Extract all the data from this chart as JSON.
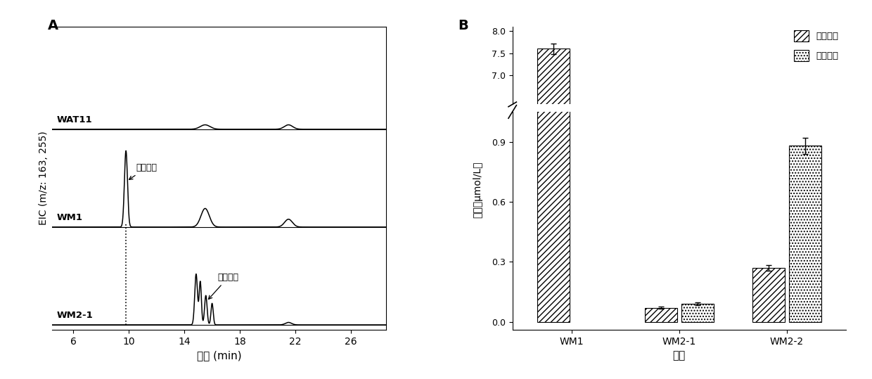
{
  "panel_A_label": "A",
  "panel_B_label": "B",
  "chromatogram": {
    "xlabel": "时间 (min)",
    "ylabel": "EIC (m/z: 163, 255)",
    "xmin": 4.5,
    "xmax": 28.5,
    "xticks": [
      6,
      10,
      14,
      18,
      22,
      26
    ],
    "trace_offsets": [
      2.0,
      1.0,
      0.0
    ],
    "trace_names": [
      "WAT11",
      "WM1",
      "WM2-1"
    ],
    "dotted_x": 9.8,
    "label_coumaric": "对香豆酸",
    "label_isoliquiritigenin": "异甘草素"
  },
  "bar_chart": {
    "groups": [
      "WM1",
      "WM2-1",
      "WM2-2"
    ],
    "series": [
      {
        "name": "对香豆酸",
        "values": [
          7.6,
          0.07,
          0.27
        ],
        "errors": [
          0.12,
          0.005,
          0.015
        ],
        "hatch": "////",
        "color": "white",
        "edgecolor": "black"
      },
      {
        "name": "异甘草素",
        "values": [
          0.0,
          0.09,
          0.88
        ],
        "errors": [
          0.0,
          0.006,
          0.04
        ],
        "hatch": "....",
        "color": "white",
        "edgecolor": "black"
      }
    ],
    "ylabel": "产量（μmol/L）",
    "xlabel": "菌株",
    "bar_width": 0.3,
    "yticks_upper": [
      7.0,
      7.5,
      8.0
    ],
    "yticks_lower": [
      0.0,
      0.3,
      0.6,
      0.9
    ],
    "display_upper_min": 6.35,
    "display_upper_max": 8.1,
    "display_lower_min": -0.04,
    "display_lower_max": 1.05
  }
}
